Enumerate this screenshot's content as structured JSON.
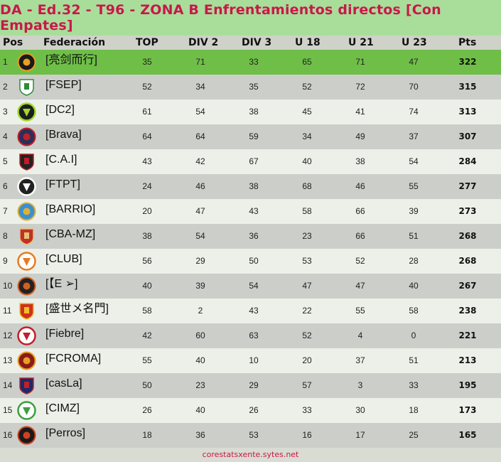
{
  "title": "DA - Ed.32 - T96 - ZONA B Enfrentamientos directos [Con Empates]",
  "headers": {
    "pos": "Pos",
    "federacion": "Federación",
    "top": "TOP",
    "div2": "DIV 2",
    "div3": "DIV 3",
    "u18": "U 18",
    "u21": "U 21",
    "u23": "U 23",
    "pts": "Pts"
  },
  "rows": [
    {
      "pos": "1",
      "name": "[亮剑而行]",
      "top": "35",
      "div2": "71",
      "div3": "33",
      "u18": "65",
      "u21": "71",
      "u23": "47",
      "pts": "322",
      "logo_icon": "phoenix-crest-icon",
      "logo_colors": [
        "#1a1a1a",
        "#e8a020"
      ]
    },
    {
      "pos": "2",
      "name": "[FSEP]",
      "top": "52",
      "div2": "34",
      "div3": "35",
      "u18": "52",
      "u21": "72",
      "u23": "70",
      "pts": "315",
      "logo_icon": "palm-tree-crest-icon",
      "logo_colors": [
        "#ffffff",
        "#2e8b3a"
      ]
    },
    {
      "pos": "3",
      "name": "[DC2]",
      "top": "61",
      "div2": "54",
      "div3": "38",
      "u18": "45",
      "u21": "41",
      "u23": "74",
      "pts": "313",
      "logo_icon": "dc-shield-icon",
      "logo_colors": [
        "#9ed92a",
        "#1d1d1d"
      ]
    },
    {
      "pos": "4",
      "name": "[Brava]",
      "top": "64",
      "div2": "64",
      "div3": "59",
      "u18": "34",
      "u21": "49",
      "u23": "37",
      "pts": "307",
      "logo_icon": "da-shield-icon",
      "logo_colors": [
        "#2b2f57",
        "#c0202a"
      ]
    },
    {
      "pos": "5",
      "name": "[C.A.I]",
      "top": "43",
      "div2": "42",
      "div3": "67",
      "u18": "40",
      "u21": "38",
      "u23": "54",
      "pts": "284",
      "logo_icon": "independiente-crest-icon",
      "logo_colors": [
        "#222222",
        "#c01c28"
      ]
    },
    {
      "pos": "6",
      "name": "[FTPT]",
      "top": "24",
      "div2": "46",
      "div3": "38",
      "u18": "68",
      "u21": "46",
      "u23": "55",
      "pts": "277",
      "logo_icon": "anchor-crest-icon",
      "logo_colors": [
        "#ffffff",
        "#222222"
      ]
    },
    {
      "pos": "7",
      "name": "[BARRIO]",
      "top": "20",
      "div2": "47",
      "div3": "43",
      "u18": "58",
      "u21": "66",
      "u23": "39",
      "pts": "273",
      "logo_icon": "winged-shield-icon",
      "logo_colors": [
        "#3a8fd0",
        "#e0b030"
      ]
    },
    {
      "pos": "8",
      "name": "[CBA-MZ]",
      "top": "38",
      "div2": "54",
      "div3": "36",
      "u18": "23",
      "u21": "66",
      "u23": "51",
      "pts": "268",
      "logo_icon": "pagoda-crest-icon",
      "logo_colors": [
        "#c0302a",
        "#e8c070"
      ]
    },
    {
      "pos": "9",
      "name": "[CLUB]",
      "top": "56",
      "div2": "29",
      "div3": "50",
      "u18": "53",
      "u21": "52",
      "u23": "28",
      "pts": "268",
      "logo_icon": "ball-crest-icon",
      "logo_colors": [
        "#e87a20",
        "#ffffff"
      ]
    },
    {
      "pos": "10",
      "name": "[【E ➢]",
      "top": "40",
      "div2": "39",
      "div3": "54",
      "u18": "47",
      "u21": "47",
      "u23": "40",
      "pts": "267",
      "logo_icon": "round-crest-icon",
      "logo_colors": [
        "#222222",
        "#d06020"
      ]
    },
    {
      "pos": "11",
      "name": "[盛世メ名門]",
      "top": "58",
      "div2": "2",
      "div3": "43",
      "u18": "22",
      "u21": "55",
      "u23": "58",
      "pts": "238",
      "logo_icon": "eagle-crest-icon",
      "logo_colors": [
        "#d03020",
        "#f0c020"
      ]
    },
    {
      "pos": "12",
      "name": "[Fiebre]",
      "top": "42",
      "div2": "60",
      "div3": "63",
      "u18": "52",
      "u21": "4",
      "u23": "0",
      "pts": "221",
      "logo_icon": "red-ball-crest-icon",
      "logo_colors": [
        "#c0202a",
        "#ffffff"
      ]
    },
    {
      "pos": "13",
      "name": "[FCROMA]",
      "top": "55",
      "div2": "40",
      "div3": "10",
      "u18": "20",
      "u21": "37",
      "u23": "51",
      "pts": "213",
      "logo_icon": "roma-crest-icon",
      "logo_colors": [
        "#8a1a1a",
        "#e8a020"
      ]
    },
    {
      "pos": "14",
      "name": "[casLa]",
      "top": "50",
      "div2": "23",
      "div3": "29",
      "u18": "57",
      "u21": "3",
      "u23": "33",
      "pts": "195",
      "logo_icon": "san-lorenzo-crest-icon",
      "logo_colors": [
        "#1a2a6a",
        "#c0202a"
      ]
    },
    {
      "pos": "15",
      "name": "[CIMZ]",
      "top": "26",
      "div2": "40",
      "div3": "26",
      "u18": "33",
      "u21": "30",
      "u23": "18",
      "pts": "173",
      "logo_icon": "green-circle-crest-icon",
      "logo_colors": [
        "#3aa040",
        "#ffffff"
      ]
    },
    {
      "pos": "16",
      "name": "[Perros]",
      "top": "18",
      "div2": "36",
      "div3": "53",
      "u18": "16",
      "u21": "17",
      "u23": "25",
      "pts": "165",
      "logo_icon": "dog-crest-icon",
      "logo_colors": [
        "#1a1a1a",
        "#d04020"
      ]
    }
  ],
  "footer": "corestatsxente.sytes.net",
  "colors": {
    "title_bg": "#a9dd9a",
    "title_text": "#c8184a",
    "first_row_bg": "#6fbe48",
    "odd_row_bg": "#edf0e8",
    "even_row_bg": "#ccceca"
  }
}
